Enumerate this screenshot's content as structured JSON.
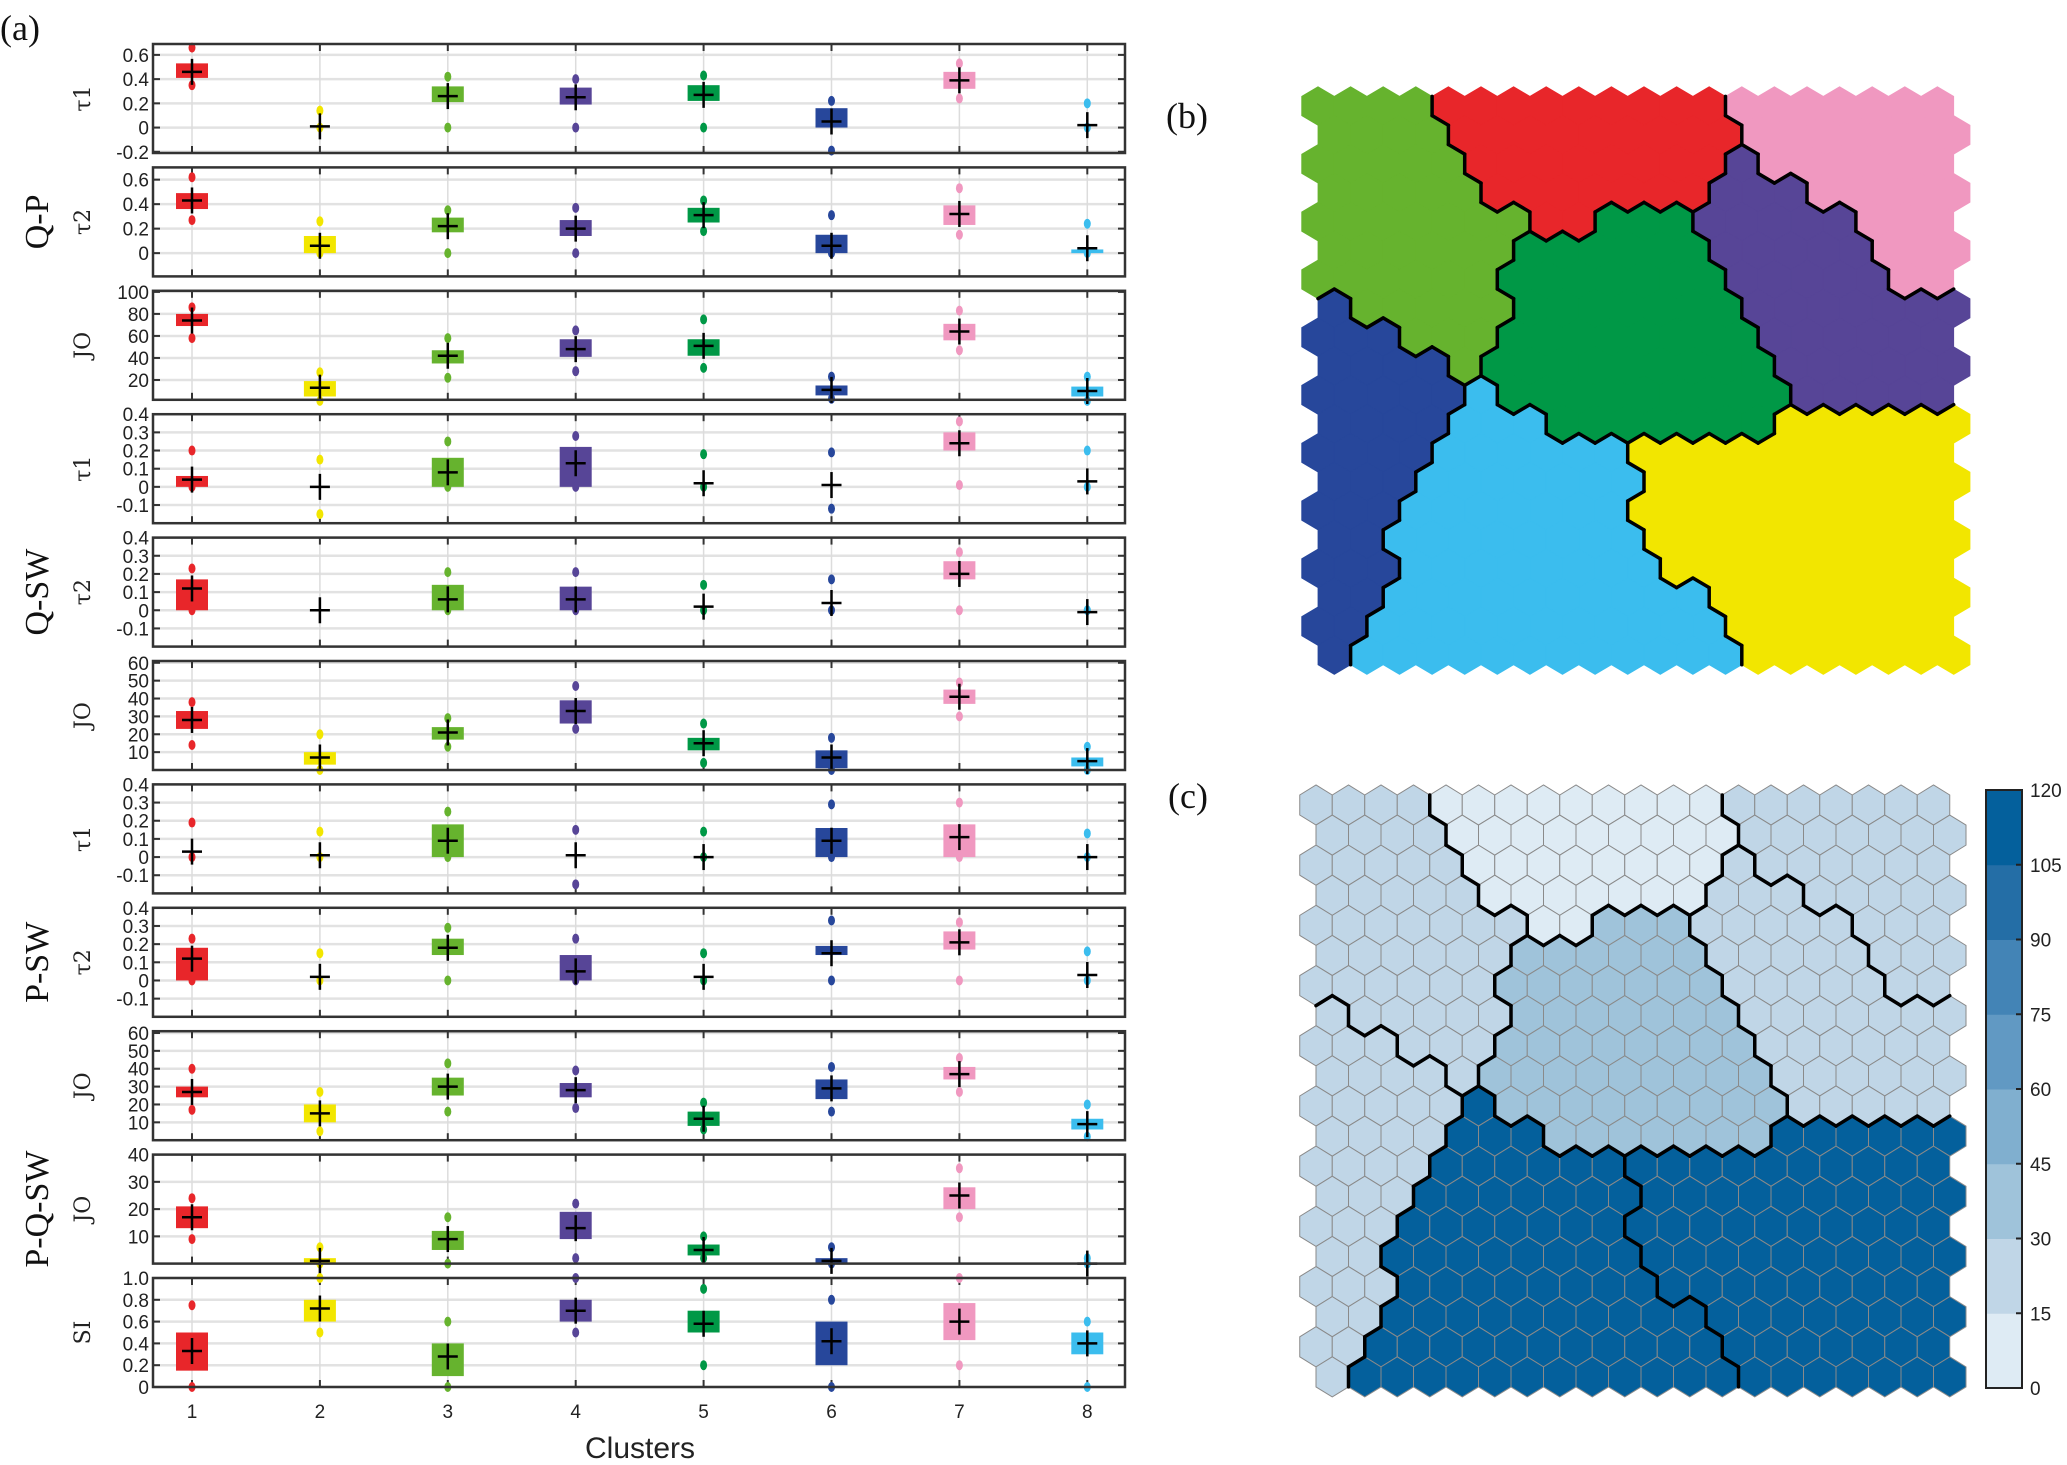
{
  "panel_labels": {
    "a": "(a)",
    "b": "(b)",
    "c": "(c)"
  },
  "cluster_colors": [
    "#e8262a",
    "#f2e600",
    "#66b32e",
    "#574597",
    "#009846",
    "#27479b",
    "#f098c0",
    "#3bbdee"
  ],
  "chart_data": [
    {
      "type": "box",
      "xlabel": "Clusters",
      "xticks": [
        "1",
        "2",
        "3",
        "4",
        "5",
        "6",
        "7",
        "8"
      ],
      "stat_order": [
        "min",
        "q1",
        "mean",
        "q3",
        "max"
      ],
      "grid": true,
      "groups": [
        {
          "label": "Q-P",
          "subplots": [
            0,
            1,
            2
          ]
        },
        {
          "label": "Q-SW",
          "subplots": [
            3,
            4,
            5
          ]
        },
        {
          "label": "P-SW",
          "subplots": [
            6,
            7,
            8
          ]
        },
        {
          "label": "P-Q-SW",
          "subplots": [
            9
          ]
        }
      ],
      "subplots": [
        {
          "ylabel": "τ1",
          "ylim": [
            -0.21,
            0.69
          ],
          "yticks": [
            -0.2,
            0,
            0.2,
            0.4,
            0.6
          ],
          "ytick_labels": [
            "-0.2",
            "0",
            "0.2",
            "0.4",
            "0.6"
          ],
          "clusters": [
            [
              0.35,
              0.41,
              0.46,
              0.53,
              0.66
            ],
            [
              0,
              null,
              0.01,
              null,
              0.14
            ],
            [
              0,
              0.21,
              0.26,
              0.34,
              0.42
            ],
            [
              0,
              0.19,
              0.25,
              0.33,
              0.4
            ],
            [
              0,
              0.22,
              0.27,
              0.35,
              0.43
            ],
            [
              -0.19,
              0,
              0.05,
              0.16,
              0.22
            ],
            [
              0.24,
              0.32,
              0.39,
              0.46,
              0.53
            ],
            [
              0,
              null,
              0.02,
              null,
              0.2
            ]
          ]
        },
        {
          "ylabel": "τ2",
          "ylim": [
            -0.19,
            0.7
          ],
          "yticks": [
            0,
            0.2,
            0.4,
            0.6
          ],
          "ytick_labels": [
            "0",
            "0.2",
            "0.4",
            "0.6"
          ],
          "clusters": [
            [
              0.27,
              0.36,
              0.43,
              0.49,
              0.62
            ],
            [
              0,
              0,
              0.06,
              0.14,
              0.26
            ],
            [
              0,
              0.17,
              0.22,
              0.29,
              0.35
            ],
            [
              0,
              0.14,
              0.2,
              0.27,
              0.37
            ],
            [
              0.18,
              0.25,
              0.31,
              0.37,
              0.43
            ],
            [
              0,
              0,
              0.06,
              0.15,
              0.31
            ],
            [
              0.15,
              0.23,
              0.32,
              0.39,
              0.53
            ],
            [
              0,
              0,
              0.04,
              0.03,
              0.24
            ]
          ]
        },
        {
          "ylabel": "JO",
          "ylim": [
            2,
            101
          ],
          "yticks": [
            20,
            40,
            60,
            80,
            100
          ],
          "ytick_labels": [
            "20",
            "40",
            "60",
            "80",
            "100"
          ],
          "clusters": [
            [
              58,
              69,
              74,
              80,
              86
            ],
            [
              1,
              5,
              13,
              19,
              27
            ],
            [
              22,
              35,
              42,
              47,
              58
            ],
            [
              28,
              41,
              48,
              57,
              65
            ],
            [
              31,
              42,
              51,
              57,
              75
            ],
            [
              3,
              6,
              11,
              15,
              23
            ],
            [
              47,
              56,
              64,
              71,
              83
            ],
            [
              1,
              5,
              10,
              14,
              23
            ]
          ]
        },
        {
          "ylabel": "τ1",
          "ylim": [
            -0.2,
            0.4
          ],
          "yticks": [
            -0.1,
            0,
            0.1,
            0.2,
            0.3,
            0.4
          ],
          "ytick_labels": [
            "-0.1",
            "0",
            "0.1",
            "0.2",
            "0.3",
            "0.4"
          ],
          "clusters": [
            [
              0,
              0,
              0.04,
              0.06,
              0.2
            ],
            [
              -0.15,
              null,
              0,
              null,
              0.15
            ],
            [
              0,
              0,
              0.08,
              0.16,
              0.25
            ],
            [
              0,
              0,
              0.13,
              0.22,
              0.28
            ],
            [
              0,
              null,
              0.02,
              null,
              0.18
            ],
            [
              -0.12,
              null,
              0.01,
              null,
              0.19
            ],
            [
              0.01,
              0.2,
              0.24,
              0.3,
              0.36
            ],
            [
              0,
              null,
              0.03,
              null,
              0.2
            ]
          ]
        },
        {
          "ylabel": "τ2",
          "ylim": [
            -0.2,
            0.4
          ],
          "yticks": [
            -0.1,
            0,
            0.1,
            0.2,
            0.3,
            0.4
          ],
          "ytick_labels": [
            "-0.1",
            "0",
            "0.1",
            "0.2",
            "0.3",
            "0.4"
          ],
          "clusters": [
            [
              0,
              0,
              0.12,
              0.17,
              0.23
            ],
            [
              null,
              null,
              0,
              null,
              null
            ],
            [
              0,
              0,
              0.06,
              0.14,
              0.21
            ],
            [
              0,
              0,
              0.06,
              0.13,
              0.21
            ],
            [
              0,
              null,
              0.02,
              null,
              0.14
            ],
            [
              0,
              null,
              0.04,
              null,
              0.17
            ],
            [
              0,
              0.17,
              0.2,
              0.27,
              0.32
            ],
            [
              0,
              null,
              -0.01,
              null,
              0
            ]
          ]
        },
        {
          "ylabel": "JO",
          "ylim": [
            0,
            61
          ],
          "yticks": [
            10,
            20,
            30,
            40,
            50,
            60
          ],
          "ytick_labels": [
            "10",
            "20",
            "30",
            "40",
            "50",
            "60"
          ],
          "clusters": [
            [
              14,
              23,
              28,
              33,
              38
            ],
            [
              0,
              3,
              7,
              10,
              20
            ],
            [
              13,
              17,
              21,
              24,
              29
            ],
            [
              23,
              26,
              33,
              39,
              47
            ],
            [
              4,
              11,
              15,
              18,
              26
            ],
            [
              0,
              1,
              7,
              11,
              18
            ],
            [
              30,
              37,
              41,
              45,
              49
            ],
            [
              0,
              2,
              5,
              7,
              13
            ]
          ]
        },
        {
          "ylabel": "τ1",
          "ylim": [
            -0.2,
            0.4
          ],
          "yticks": [
            -0.1,
            0,
            0.1,
            0.2,
            0.3,
            0.4
          ],
          "ytick_labels": [
            "-0.1",
            "0",
            "0.1",
            "0.2",
            "0.3",
            "0.4"
          ],
          "clusters": [
            [
              0,
              null,
              0.03,
              null,
              0.19
            ],
            [
              0,
              null,
              0.01,
              null,
              0.14
            ],
            [
              0,
              0,
              0.09,
              0.18,
              0.25
            ],
            [
              -0.15,
              null,
              0.01,
              null,
              0.15
            ],
            [
              0,
              null,
              0,
              null,
              0.14
            ],
            [
              0,
              0,
              0.09,
              0.16,
              0.29
            ],
            [
              0,
              0,
              0.11,
              0.18,
              0.3
            ],
            [
              0,
              null,
              0,
              null,
              0.13
            ]
          ]
        },
        {
          "ylabel": "τ2",
          "ylim": [
            -0.2,
            0.4
          ],
          "yticks": [
            -0.1,
            0,
            0.1,
            0.2,
            0.3,
            0.4
          ],
          "ytick_labels": [
            "-0.1",
            "0",
            "0.1",
            "0.2",
            "0.3",
            "0.4"
          ],
          "clusters": [
            [
              0,
              0,
              0.12,
              0.18,
              0.23
            ],
            [
              0,
              null,
              0.02,
              null,
              0.15
            ],
            [
              0,
              0.14,
              0.18,
              0.23,
              0.29
            ],
            [
              0,
              0,
              0.05,
              0.14,
              0.23
            ],
            [
              0,
              null,
              0.02,
              null,
              0.15
            ],
            [
              0,
              0.14,
              0.15,
              0.19,
              0.33
            ],
            [
              0,
              0.17,
              0.21,
              0.27,
              0.32
            ],
            [
              0,
              null,
              0.03,
              null,
              0.16
            ]
          ]
        },
        {
          "ylabel": "JO",
          "ylim": [
            0,
            61
          ],
          "yticks": [
            10,
            20,
            30,
            40,
            50,
            60
          ],
          "ytick_labels": [
            "10",
            "20",
            "30",
            "40",
            "50",
            "60"
          ],
          "clusters": [
            [
              17,
              24,
              27,
              30,
              40
            ],
            [
              5,
              10,
              15,
              20,
              27
            ],
            [
              16,
              25,
              30,
              35,
              43
            ],
            [
              18,
              24,
              28,
              32,
              39
            ],
            [
              6,
              8,
              12,
              16,
              21
            ],
            [
              16,
              23,
              29,
              34,
              41
            ],
            [
              27,
              34,
              37,
              41,
              46
            ],
            [
              2,
              6,
              9,
              12,
              20
            ]
          ]
        },
        {
          "ylabel": "JO",
          "ylim": [
            0,
            40
          ],
          "yticks": [
            10,
            20,
            30,
            40
          ],
          "ytick_labels": [
            "10",
            "20",
            "30",
            "40"
          ],
          "clusters": [
            [
              9,
              13,
              17,
              21,
              24
            ],
            [
              0,
              0,
              1,
              2,
              6
            ],
            [
              0,
              5,
              9,
              12,
              17
            ],
            [
              2,
              9,
              13,
              19,
              22
            ],
            [
              2,
              3,
              5,
              7,
              10
            ],
            [
              0,
              0,
              1,
              2,
              6
            ],
            [
              17,
              20,
              25,
              28,
              35
            ],
            [
              0,
              null,
              0,
              null,
              2
            ]
          ]
        },
        {
          "ylabel": "SI",
          "ylim": [
            0,
            1
          ],
          "yticks": [
            0,
            0.2,
            0.4,
            0.6,
            0.8,
            1.0
          ],
          "ytick_labels": [
            "0",
            "0.2",
            "0.4",
            "0.6",
            "0.8",
            "1.0"
          ],
          "clusters": [
            [
              0,
              0.15,
              0.33,
              0.5,
              0.75
            ],
            [
              0.5,
              0.6,
              0.72,
              0.8,
              1.0
            ],
            [
              0,
              0.1,
              0.28,
              0.4,
              0.6
            ],
            [
              0.5,
              0.6,
              0.7,
              0.8,
              1.0
            ],
            [
              0.2,
              0.5,
              0.58,
              0.7,
              0.9
            ],
            [
              0,
              0.2,
              0.42,
              0.6,
              0.8
            ],
            [
              0.2,
              0.43,
              0.6,
              0.77,
              1.0
            ],
            [
              0,
              0.3,
              0.4,
              0.5,
              0.6
            ]
          ]
        }
      ]
    },
    {
      "type": "heatmap",
      "grid": "hexagonal",
      "rows": 20,
      "cols": 20,
      "cell_meaning": "cluster id per map unit",
      "cluster_map": [
        "33331111111117777777",
        "33331111111117777777",
        "33333111111114777777",
        "33333111111144477777",
        "33333331155544444777",
        "33333355555544444777",
        "33333355555554444477",
        "63333355555554444444",
        "66633355555555444444",
        "66663555555555444444",
        "66666855555555544444",
        "66668885555555222222",
        "66668888882222222222",
        "66688888882222222222",
        "66688888882222222222",
        "66888888882222222222",
        "66688888888222222222",
        "66888888888822222222",
        "66888888888882222222",
        "68888888888882222222"
      ]
    },
    {
      "type": "heatmap",
      "grid": "hexagonal",
      "cluster_value_range": {
        "1": [
          0,
          15
        ],
        "2": [
          105,
          120
        ],
        "3": [
          15,
          30
        ],
        "4": [
          15,
          30
        ],
        "5": [
          30,
          45
        ],
        "6": [
          15,
          30
        ],
        "7": [
          15,
          30
        ],
        "8": [
          105,
          120
        ]
      },
      "colorbar": {
        "ticks": [
          "0",
          "15",
          "30",
          "45",
          "60",
          "75",
          "90",
          "105",
          "120"
        ],
        "range": [
          0,
          120
        ],
        "colors": [
          "#deebf4",
          "#c0d6e7",
          "#9fc3da",
          "#80afcf",
          "#6199c3",
          "#4384b6",
          "#246ea6",
          "#04609c"
        ]
      }
    }
  ]
}
